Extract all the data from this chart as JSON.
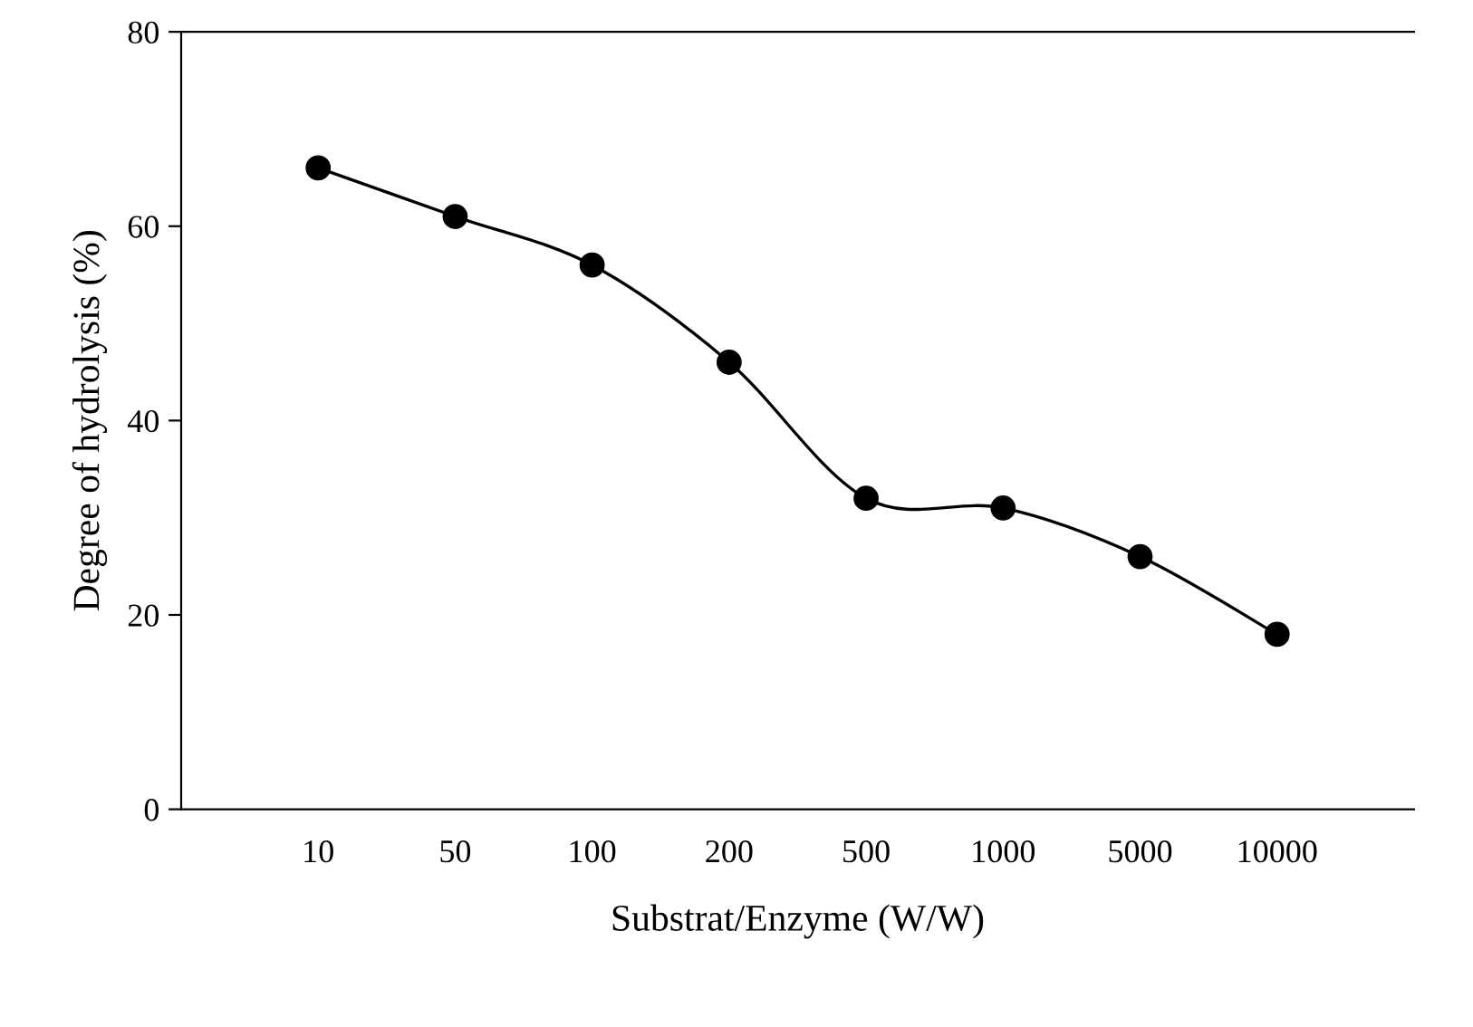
{
  "chart_data": {
    "type": "line",
    "xlabel": "Substrat/Enzyme (W/W)",
    "ylabel": "Degree of hydrolysis (%)",
    "categories": [
      "10",
      "50",
      "100",
      "200",
      "500",
      "1000",
      "5000",
      "10000"
    ],
    "series": [
      {
        "color": "#000000",
        "values": [
          66,
          61,
          56,
          46,
          32,
          31,
          26,
          18
        ]
      }
    ],
    "ylim": [
      0,
      80
    ],
    "yticks": [
      0,
      20,
      40,
      60,
      80
    ],
    "marker": "circle",
    "line_style": "solid",
    "grid": false,
    "legend": false
  }
}
